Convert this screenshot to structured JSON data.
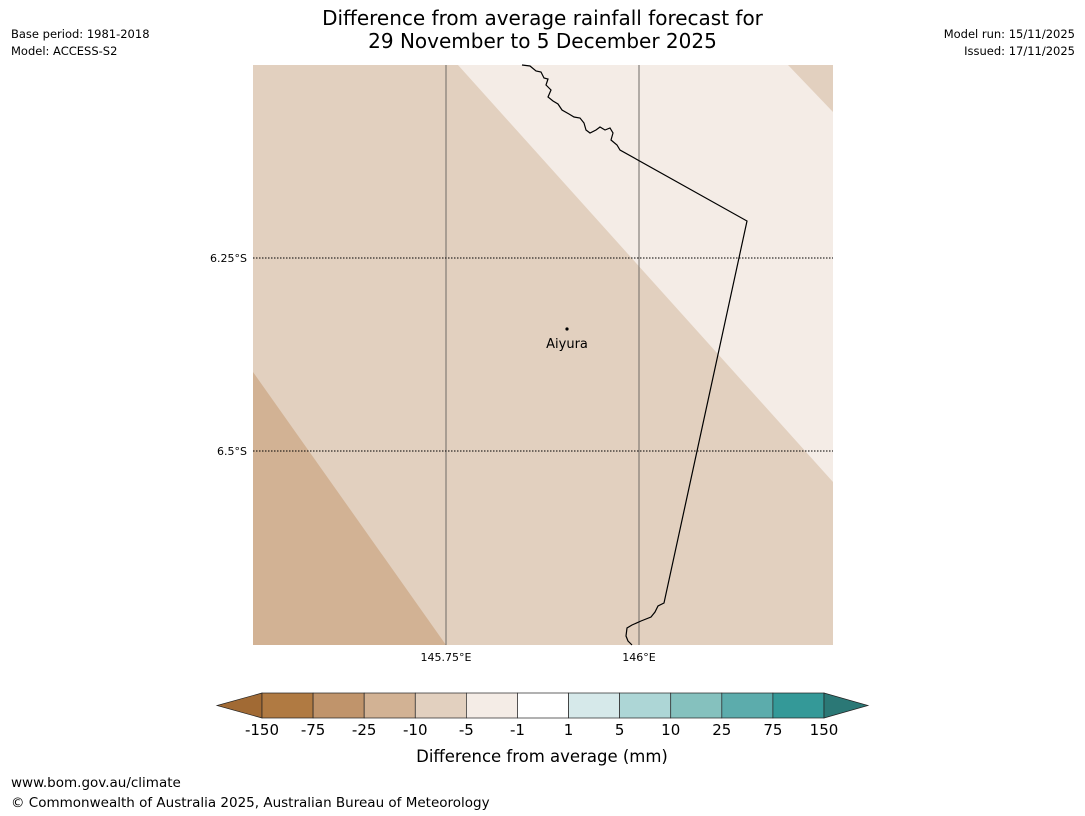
{
  "header": {
    "base_period": "Base period: 1981-2018",
    "model": "Model: ACCESS-S2",
    "title_line1": "Difference from average rainfall forecast for",
    "title_line2": "29 November to 5 December 2025",
    "model_run": "Model run: 15/11/2025",
    "issued": "Issued: 17/11/2025"
  },
  "map": {
    "lat_labels": [
      "6.25°S",
      "6.5°S"
    ],
    "lon_labels": [
      "145.75°E",
      "146°E"
    ],
    "place": "Aiyura",
    "colors": {
      "dry_moderate": "#d2b294",
      "dry_light": "#e2d0bf",
      "near_average": "#f4ece6"
    }
  },
  "legend": {
    "ticks": [
      "-150",
      "-75",
      "-25",
      "-10",
      "-5",
      "-1",
      "1",
      "5",
      "10",
      "25",
      "75",
      "150"
    ],
    "colors": [
      "#a16a34",
      "#b07a42",
      "#c0946b",
      "#d2b294",
      "#e2d0bf",
      "#f4ece6",
      "#ffffff",
      "#d6e9ea",
      "#add6d6",
      "#85c1be",
      "#5cacac",
      "#349998",
      "#2b7876"
    ],
    "label": "Difference from average (mm)"
  },
  "footer": {
    "url": "www.bom.gov.au/climate",
    "copyright": "© Commonwealth of Australia 2025, Australian Bureau of Meteorology"
  }
}
